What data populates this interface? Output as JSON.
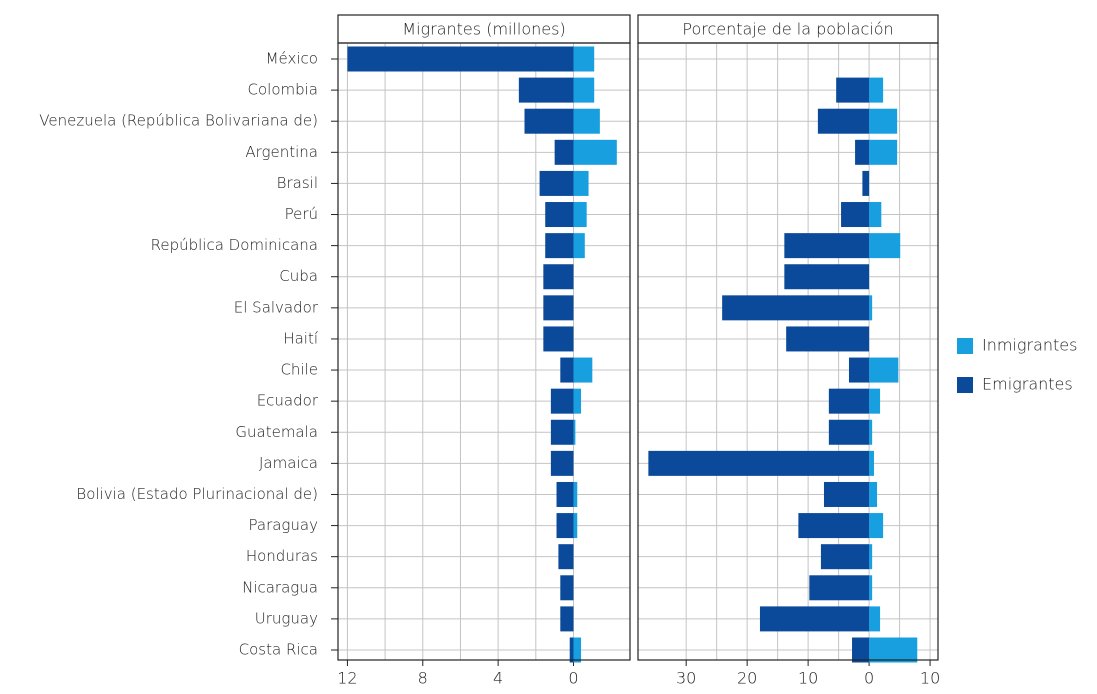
{
  "chart_data": {
    "type": "bar",
    "grid": true,
    "legend": "right",
    "categories": [
      "México",
      "Colombia",
      "Venezuela (República Bolivariana de)",
      "Argentina",
      "Brasil",
      "Perú",
      "República Dominicana",
      "Cuba",
      "El Salvador",
      "Haití",
      "Chile",
      "Ecuador",
      "Guatemala",
      "Jamaica",
      "Bolivia (Estado Plurinacional de)",
      "Paraguay",
      "Honduras",
      "Nicaragua",
      "Uruguay",
      "Costa Rica"
    ],
    "series": [
      {
        "name": "Inmigrantes",
        "color": "#179fe0",
        "side": "right"
      },
      {
        "name": "Emigrantes",
        "color": "#0b4a9a",
        "side": "left"
      }
    ],
    "panels": [
      {
        "title": "Migrantes (millones)",
        "xlim": [
          12.5,
          -3
        ],
        "xticks": [
          12,
          8,
          4,
          0
        ],
        "series": [
          {
            "values": [
              1.1,
              1.1,
              1.4,
              2.3,
              0.8,
              0.7,
              0.6,
              0,
              0,
              0,
              1.0,
              0.4,
              0.1,
              0,
              0.2,
              0.2,
              0,
              0,
              0,
              0.4
            ]
          },
          {
            "values": [
              12.0,
              2.9,
              2.6,
              1.0,
              1.8,
              1.5,
              1.5,
              1.6,
              1.6,
              1.6,
              0.7,
              1.2,
              1.2,
              1.2,
              0.9,
              0.9,
              0.8,
              0.7,
              0.7,
              0.2
            ]
          }
        ]
      },
      {
        "title": "Porcentaje de la población",
        "xlim": [
          37.9,
          -11.3
        ],
        "xticks": [
          30,
          20,
          10,
          0,
          {
            "value": -10,
            "label": "10"
          }
        ],
        "series": [
          {
            "values": [
              null,
              2.3,
              4.6,
              4.6,
              0,
              2.0,
              5.1,
              0,
              0.5,
              0,
              4.8,
              1.8,
              0.5,
              0.8,
              1.3,
              2.3,
              0.5,
              0.5,
              1.8,
              7.9
            ]
          },
          {
            "values": [
              null,
              5.4,
              8.4,
              2.3,
              1.1,
              4.6,
              13.9,
              13.9,
              24.1,
              13.6,
              3.3,
              6.6,
              6.6,
              36.2,
              7.4,
              11.6,
              7.9,
              9.8,
              17.9,
              2.8
            ]
          }
        ]
      }
    ]
  }
}
